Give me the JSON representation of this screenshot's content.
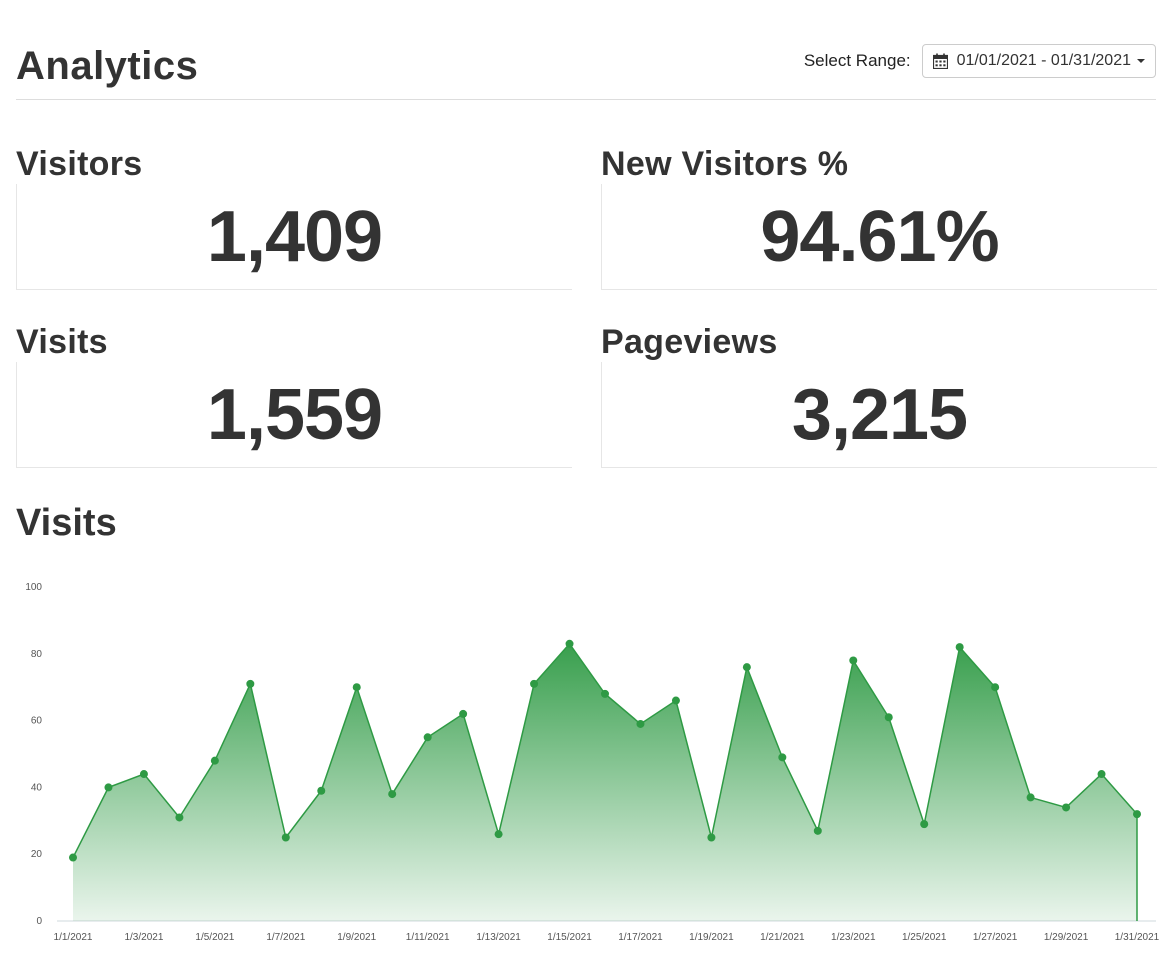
{
  "header": {
    "title": "Analytics",
    "range_label": "Select Range:",
    "range_value": "01/01/2021 - 01/31/2021"
  },
  "stats": {
    "visitors": {
      "label": "Visitors",
      "value": "1,409"
    },
    "new_visitors": {
      "label": "New Visitors %",
      "value": "94.61%"
    },
    "visits": {
      "label": "Visits",
      "value": "1,559"
    },
    "pageviews": {
      "label": "Pageviews",
      "value": "3,215"
    }
  },
  "chart_title": "Visits",
  "icons": {
    "range": "calendar-icon",
    "dropdown": "caret-down-icon"
  },
  "colors": {
    "accent": "#2e9a44",
    "text": "#333333"
  },
  "chart_data": {
    "type": "area",
    "x": [
      "1/1/2021",
      "1/2/2021",
      "1/3/2021",
      "1/4/2021",
      "1/5/2021",
      "1/6/2021",
      "1/7/2021",
      "1/8/2021",
      "1/9/2021",
      "1/10/2021",
      "1/11/2021",
      "1/12/2021",
      "1/13/2021",
      "1/14/2021",
      "1/15/2021",
      "1/16/2021",
      "1/17/2021",
      "1/18/2021",
      "1/19/2021",
      "1/20/2021",
      "1/21/2021",
      "1/22/2021",
      "1/23/2021",
      "1/24/2021",
      "1/25/2021",
      "1/26/2021",
      "1/27/2021",
      "1/28/2021",
      "1/29/2021",
      "1/30/2021",
      "1/31/2021"
    ],
    "x_tick_labels": [
      "1/1/2021",
      "1/3/2021",
      "1/5/2021",
      "1/7/2021",
      "1/9/2021",
      "1/11/2021",
      "1/13/2021",
      "1/15/2021",
      "1/17/2021",
      "1/19/2021",
      "1/21/2021",
      "1/23/2021",
      "1/25/2021",
      "1/27/2021",
      "1/29/2021",
      "1/31/2021"
    ],
    "series": [
      {
        "values": [
          19,
          40,
          44,
          31,
          48,
          71,
          25,
          39,
          70,
          38,
          55,
          62,
          26,
          71,
          83,
          68,
          59,
          66,
          25,
          76,
          49,
          27,
          78,
          61,
          29,
          82,
          70,
          37,
          34,
          44,
          32
        ]
      }
    ],
    "ylim": [
      0,
      100
    ],
    "yticks": [
      0,
      20,
      40,
      60,
      80,
      100
    ],
    "xlabel": "",
    "ylabel": "",
    "grid": false,
    "color": "#2e9a44"
  }
}
